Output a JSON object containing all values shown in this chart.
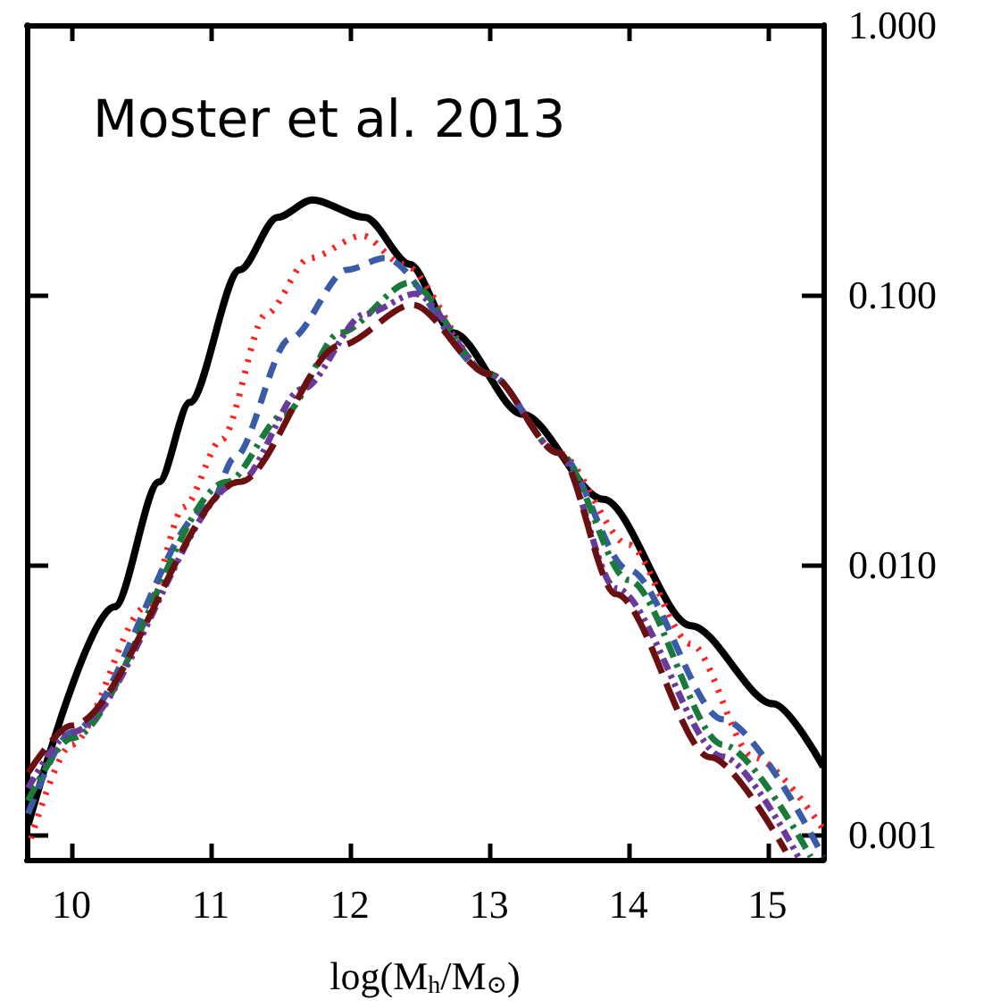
{
  "chart_data": {
    "type": "line",
    "xlabel": "log(M$_{h}$/M$_{⊙}$)",
    "annotations": [
      "Moster et al. 2013"
    ],
    "xlim": [
      9.68,
      15.4
    ],
    "ylim": [
      0.00081,
      1.0
    ],
    "xticks": [
      10,
      11,
      12,
      13,
      14,
      15
    ],
    "yticks": [
      {
        "value": 0.001,
        "label": "0.001"
      },
      {
        "value": 0.01,
        "label": "0.010"
      },
      {
        "value": 0.1,
        "label": "0.100"
      },
      {
        "value": 1,
        "label": "1.000"
      }
    ],
    "log": "y",
    "grid": false,
    "marker": "none",
    "series": [
      {
        "color": "#000000",
        "line_style": "solid",
        "x": [
          9.69,
          10.31,
          10.63,
          10.85,
          11.21,
          11.48,
          11.73,
          12.11,
          12.43,
          12.74,
          13.24,
          13.82,
          14.45,
          15.04,
          15.4
        ],
        "values": [
          0.00109,
          0.007,
          0.0203,
          0.04,
          0.124,
          0.194,
          0.225,
          0.194,
          0.13,
          0.0725,
          0.0362,
          0.0175,
          0.00596,
          0.00306,
          0.00179
        ]
      },
      {
        "color": "#ff2020",
        "line_style": "dotted",
        "x": [
          9.71,
          10.0,
          10.54,
          10.81,
          11.08,
          11.4,
          11.71,
          12.09,
          12.38,
          13.0,
          13.5,
          14.0,
          14.45,
          14.9,
          15.4
        ],
        "values": [
          0.00097,
          0.00216,
          0.007,
          0.0164,
          0.0292,
          0.085,
          0.137,
          0.166,
          0.13,
          0.051,
          0.026,
          0.0119,
          0.0051,
          0.00194,
          0.00105
        ]
      },
      {
        "color": "#3a5ca8",
        "line_style": "dashed",
        "x": [
          9.69,
          10.0,
          10.99,
          11.17,
          11.57,
          11.98,
          12.25,
          13.0,
          13.5,
          14.0,
          14.68,
          15.4
        ],
        "values": [
          0.0012,
          0.0024,
          0.0164,
          0.0249,
          0.0688,
          0.124,
          0.137,
          0.051,
          0.026,
          0.0096,
          0.00268,
          0.00083
        ]
      },
      {
        "color": "#1a7a3a",
        "line_style": "dashdot",
        "x": [
          9.69,
          10.0,
          11.12,
          11.53,
          11.93,
          12.43,
          13.0,
          13.5,
          14.0,
          14.68,
          15.31
        ],
        "values": [
          0.00134,
          0.00228,
          0.0203,
          0.0362,
          0.0725,
          0.111,
          0.051,
          0.026,
          0.0088,
          0.00216,
          0.00083
        ]
      },
      {
        "color": "#6a3a9a",
        "line_style": "dashdotdot",
        "x": [
          9.69,
          10.0,
          11.21,
          11.66,
          12.11,
          12.47,
          13.0,
          13.5,
          13.91,
          14.68,
          15.22
        ],
        "values": [
          0.00149,
          0.0024,
          0.0203,
          0.0449,
          0.085,
          0.101,
          0.051,
          0.026,
          0.0082,
          0.00195,
          0.00083
        ]
      },
      {
        "color": "#6b1010",
        "line_style": "longdash",
        "x": [
          9.69,
          10.0,
          11.21,
          11.93,
          12.45,
          13.0,
          13.5,
          13.91,
          14.59,
          15.13
        ],
        "values": [
          0.0017,
          0.00254,
          0.0203,
          0.065,
          0.092,
          0.051,
          0.026,
          0.0078,
          0.00194,
          0.00087
        ]
      }
    ]
  }
}
